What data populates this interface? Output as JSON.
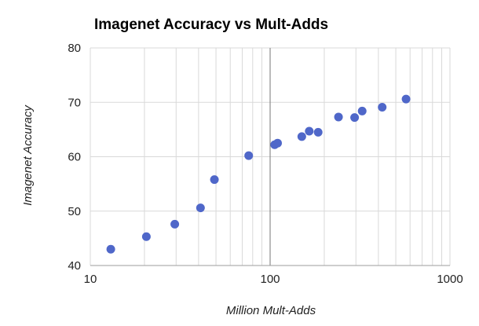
{
  "chart_data": {
    "type": "scatter",
    "title": "Imagenet Accuracy vs Mult-Adds",
    "xlabel": "Million Mult-Adds",
    "ylabel": "Imagenet Accuracy",
    "x_scale": "log",
    "xlim": [
      10,
      1000
    ],
    "ylim": [
      40,
      80
    ],
    "x_ticks": [
      10,
      100,
      1000
    ],
    "x_tick_labels": [
      "10",
      "100",
      "1000"
    ],
    "y_ticks": [
      40,
      50,
      60,
      70,
      80
    ],
    "y_tick_labels": [
      "40",
      "50",
      "60",
      "70",
      "80"
    ],
    "grid": true,
    "legend": "none",
    "marker_color": "#4f67c9",
    "gridline_color": "#d9d9d9",
    "reference_line_color": "#777777",
    "series": [
      {
        "points": [
          {
            "x": 13,
            "y": 43.0
          },
          {
            "x": 20.5,
            "y": 45.3
          },
          {
            "x": 29.5,
            "y": 47.6
          },
          {
            "x": 41,
            "y": 50.6
          },
          {
            "x": 49,
            "y": 55.8
          },
          {
            "x": 76,
            "y": 60.2
          },
          {
            "x": 106,
            "y": 62.2
          },
          {
            "x": 110,
            "y": 62.5
          },
          {
            "x": 150,
            "y": 63.7
          },
          {
            "x": 165,
            "y": 64.7
          },
          {
            "x": 185,
            "y": 64.5
          },
          {
            "x": 240,
            "y": 67.3
          },
          {
            "x": 295,
            "y": 67.2
          },
          {
            "x": 325,
            "y": 68.4
          },
          {
            "x": 420,
            "y": 69.1
          },
          {
            "x": 570,
            "y": 70.6
          }
        ]
      }
    ]
  }
}
